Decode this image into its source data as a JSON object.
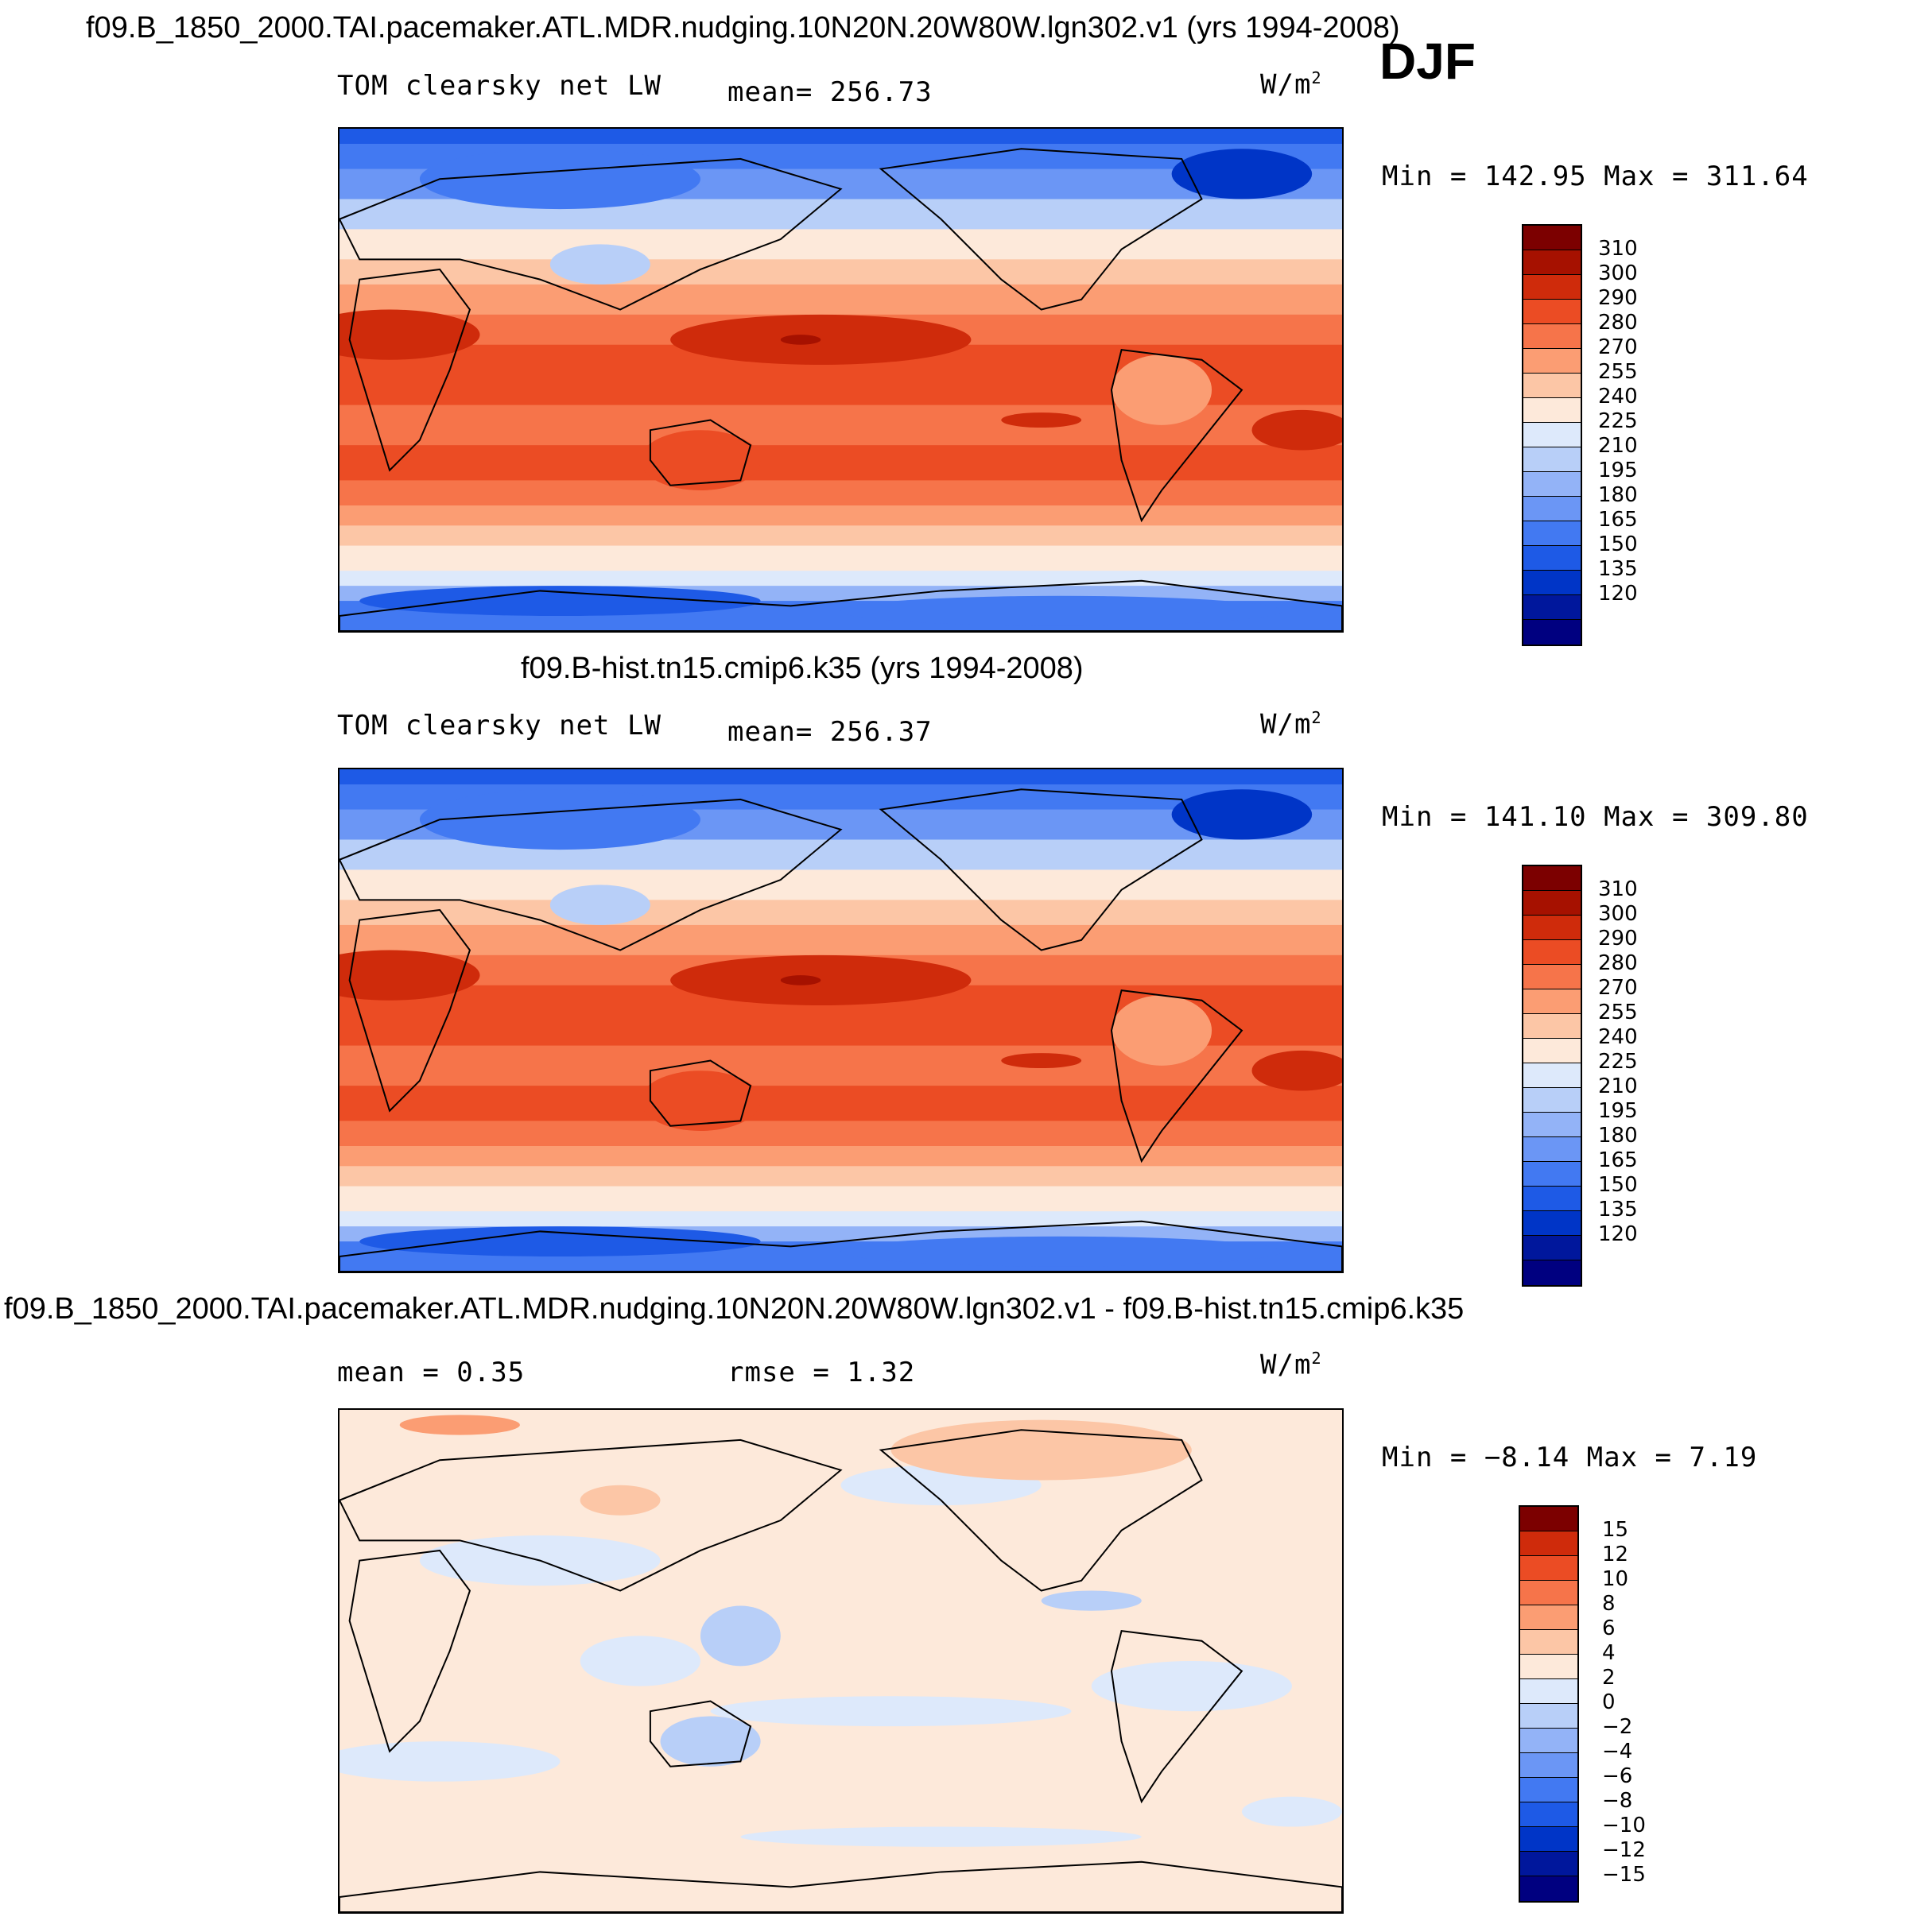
{
  "season": "DJF",
  "units": "W/m",
  "units_power": "2",
  "colors": {
    "abs": [
      "#000080",
      "#00179c",
      "#0035c7",
      "#1e5ae6",
      "#4279f2",
      "#6b96f5",
      "#93b3f7",
      "#b8cff8",
      "#dde9fb",
      "#fde9da",
      "#fcc6a6",
      "#fb9d73",
      "#f6744a",
      "#eb4c24",
      "#cf2b0b",
      "#a61100",
      "#7c0000"
    ],
    "diff": [
      "#000080",
      "#00179c",
      "#0035c7",
      "#1e5ae6",
      "#4279f2",
      "#6b96f5",
      "#93b3f7",
      "#b8cff8",
      "#dde9fb",
      "#fde9da",
      "#fcc6a6",
      "#fb9d73",
      "#f6744a",
      "#eb4c24",
      "#cf2b0b",
      "#7c0000"
    ]
  },
  "panels": [
    {
      "title": "f09.B_1850_2000.TAI.pacemaker.ATL.MDR.nudging.10N20N.20W80W.lgn302.v1 (yrs 1994-2008)",
      "left_label": "TOM clearsky net LW",
      "center_label": "mean= 256.73",
      "minmax": "Min = 142.95 Max = 311.64",
      "colorbar_ticks": [
        "310",
        "300",
        "290",
        "280",
        "270",
        "255",
        "240",
        "225",
        "210",
        "195",
        "180",
        "165",
        "150",
        "135",
        "120"
      ]
    },
    {
      "title": "f09.B-hist.tn15.cmip6.k35 (yrs 1994-2008)",
      "left_label": "TOM clearsky net LW",
      "center_label": "mean= 256.37",
      "minmax": "Min = 141.10 Max = 309.80",
      "colorbar_ticks": [
        "310",
        "300",
        "290",
        "280",
        "270",
        "255",
        "240",
        "225",
        "210",
        "195",
        "180",
        "165",
        "150",
        "135",
        "120"
      ]
    },
    {
      "title": "f09.B_1850_2000.TAI.pacemaker.ATL.MDR.nudging.10N20N.20W80W.lgn302.v1 - f09.B-hist.tn15.cmip6.k35",
      "left_label": "mean =    0.35",
      "center_label": "rmse =    1.32",
      "minmax": "Min =   −8.14 Max =    7.19",
      "colorbar_ticks": [
        "15",
        "12",
        "10",
        "8",
        "6",
        "4",
        "2",
        "0",
        "−2",
        "−4",
        "−6",
        "−8",
        "−10",
        "−12",
        "−15"
      ]
    }
  ]
}
